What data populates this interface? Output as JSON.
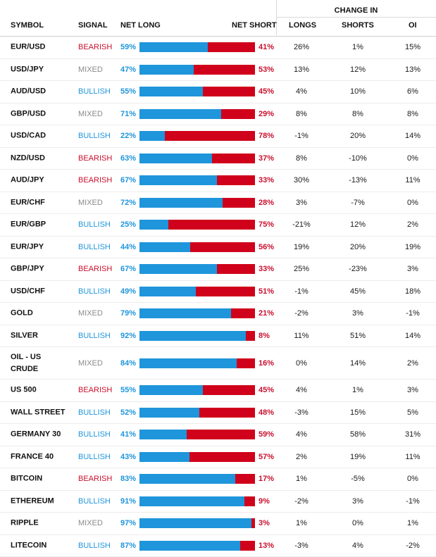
{
  "header": {
    "change_in": "CHANGE IN",
    "symbol": "SYMBOL",
    "signal": "SIGNAL",
    "net_long": "NET LONG",
    "net_short": "NET SHORT",
    "longs": "LONGS",
    "shorts": "SHORTS",
    "oi": "OI"
  },
  "colors": {
    "long": "#1f95db",
    "short": "#d0021b",
    "bearish": "#c8102e",
    "bullish": "#1f95db",
    "mixed": "#8a8a8a"
  },
  "rows": [
    {
      "symbol": "EUR/USD",
      "signal": "BEARISH",
      "net_long": "59%",
      "long_pct": 59,
      "net_short": "41%",
      "longs": "26%",
      "shorts": "1%",
      "oi": "15%"
    },
    {
      "symbol": "USD/JPY",
      "signal": "MIXED",
      "net_long": "47%",
      "long_pct": 47,
      "net_short": "53%",
      "longs": "13%",
      "shorts": "12%",
      "oi": "13%"
    },
    {
      "symbol": "AUD/USD",
      "signal": "BULLISH",
      "net_long": "55%",
      "long_pct": 55,
      "net_short": "45%",
      "longs": "4%",
      "shorts": "10%",
      "oi": "6%"
    },
    {
      "symbol": "GBP/USD",
      "signal": "MIXED",
      "net_long": "71%",
      "long_pct": 71,
      "net_short": "29%",
      "longs": "8%",
      "shorts": "8%",
      "oi": "8%"
    },
    {
      "symbol": "USD/CAD",
      "signal": "BULLISH",
      "net_long": "22%",
      "long_pct": 22,
      "net_short": "78%",
      "longs": "-1%",
      "shorts": "20%",
      "oi": "14%"
    },
    {
      "symbol": "NZD/USD",
      "signal": "BEARISH",
      "net_long": "63%",
      "long_pct": 63,
      "net_short": "37%",
      "longs": "8%",
      "shorts": "-10%",
      "oi": "0%"
    },
    {
      "symbol": "AUD/JPY",
      "signal": "BEARISH",
      "net_long": "67%",
      "long_pct": 67,
      "net_short": "33%",
      "longs": "30%",
      "shorts": "-13%",
      "oi": "11%"
    },
    {
      "symbol": "EUR/CHF",
      "signal": "MIXED",
      "net_long": "72%",
      "long_pct": 72,
      "net_short": "28%",
      "longs": "3%",
      "shorts": "-7%",
      "oi": "0%"
    },
    {
      "symbol": "EUR/GBP",
      "signal": "BULLISH",
      "net_long": "25%",
      "long_pct": 25,
      "net_short": "75%",
      "longs": "-21%",
      "shorts": "12%",
      "oi": "2%"
    },
    {
      "symbol": "EUR/JPY",
      "signal": "BULLISH",
      "net_long": "44%",
      "long_pct": 44,
      "net_short": "56%",
      "longs": "19%",
      "shorts": "20%",
      "oi": "19%"
    },
    {
      "symbol": "GBP/JPY",
      "signal": "BEARISH",
      "net_long": "67%",
      "long_pct": 67,
      "net_short": "33%",
      "longs": "25%",
      "shorts": "-23%",
      "oi": "3%"
    },
    {
      "symbol": "USD/CHF",
      "signal": "BULLISH",
      "net_long": "49%",
      "long_pct": 49,
      "net_short": "51%",
      "longs": "-1%",
      "shorts": "45%",
      "oi": "18%"
    },
    {
      "symbol": "GOLD",
      "signal": "MIXED",
      "net_long": "79%",
      "long_pct": 79,
      "net_short": "21%",
      "longs": "-2%",
      "shorts": "3%",
      "oi": "-1%"
    },
    {
      "symbol": "SILVER",
      "signal": "BULLISH",
      "net_long": "92%",
      "long_pct": 92,
      "net_short": "8%",
      "longs": "11%",
      "shorts": "51%",
      "oi": "14%"
    },
    {
      "symbol": "OIL - US CRUDE",
      "signal": "MIXED",
      "net_long": "84%",
      "long_pct": 84,
      "net_short": "16%",
      "longs": "0%",
      "shorts": "14%",
      "oi": "2%"
    },
    {
      "symbol": "US 500",
      "signal": "BEARISH",
      "net_long": "55%",
      "long_pct": 55,
      "net_short": "45%",
      "longs": "4%",
      "shorts": "1%",
      "oi": "3%"
    },
    {
      "symbol": "WALL STREET",
      "signal": "BULLISH",
      "net_long": "52%",
      "long_pct": 52,
      "net_short": "48%",
      "longs": "-3%",
      "shorts": "15%",
      "oi": "5%"
    },
    {
      "symbol": "GERMANY 30",
      "signal": "BULLISH",
      "net_long": "41%",
      "long_pct": 41,
      "net_short": "59%",
      "longs": "4%",
      "shorts": "58%",
      "oi": "31%"
    },
    {
      "symbol": "FRANCE 40",
      "signal": "BULLISH",
      "net_long": "43%",
      "long_pct": 43,
      "net_short": "57%",
      "longs": "2%",
      "shorts": "19%",
      "oi": "11%"
    },
    {
      "symbol": "BITCOIN",
      "signal": "BEARISH",
      "net_long": "83%",
      "long_pct": 83,
      "net_short": "17%",
      "longs": "1%",
      "shorts": "-5%",
      "oi": "0%"
    },
    {
      "symbol": "ETHEREUM",
      "signal": "BULLISH",
      "net_long": "91%",
      "long_pct": 91,
      "net_short": "9%",
      "longs": "-2%",
      "shorts": "3%",
      "oi": "-1%"
    },
    {
      "symbol": "RIPPLE",
      "signal": "MIXED",
      "net_long": "97%",
      "long_pct": 97,
      "net_short": "3%",
      "longs": "1%",
      "shorts": "0%",
      "oi": "1%"
    },
    {
      "symbol": "LITECOIN",
      "signal": "BULLISH",
      "net_long": "87%",
      "long_pct": 87,
      "net_short": "13%",
      "longs": "-3%",
      "shorts": "4%",
      "oi": "-2%"
    }
  ]
}
